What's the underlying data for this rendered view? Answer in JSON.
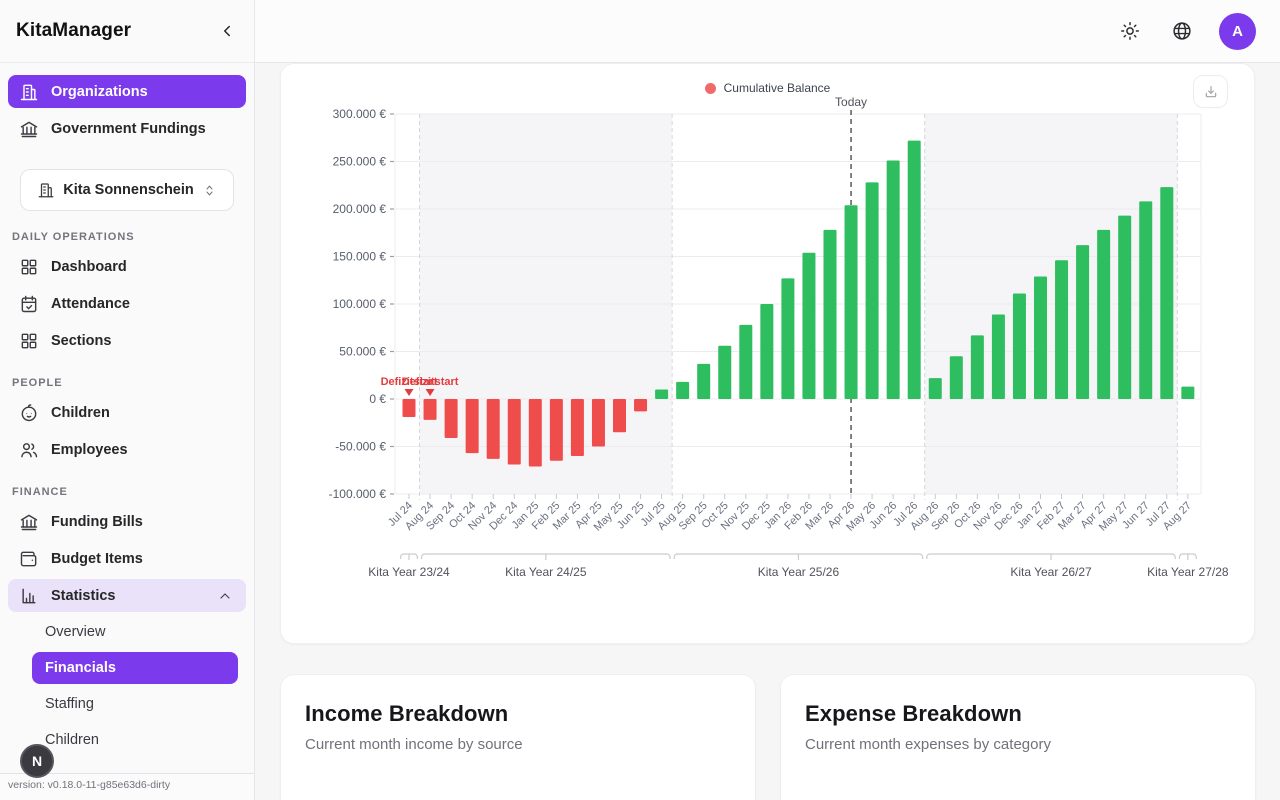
{
  "app": {
    "title": "KitaManager",
    "version_label": "version: v0.18.0-11-g85e63d6-dirty",
    "avatar_initial": "A",
    "debug_badge": "N"
  },
  "colors": {
    "accent_purple": "#7c3aed",
    "positive_green": "#2ebd5f",
    "negative_red": "#ef4c4c",
    "legend_red": "#f16a6a",
    "annotation_red": "#e23c3c"
  },
  "sidebar": {
    "primary": [
      {
        "label": "Organizations"
      },
      {
        "label": "Government Fundings"
      }
    ],
    "org_select_value": "Kita Sonnenschein",
    "daily_ops": {
      "heading": "DAILY OPERATIONS",
      "items": [
        {
          "label": "Dashboard"
        },
        {
          "label": "Attendance"
        },
        {
          "label": "Sections"
        }
      ]
    },
    "people": {
      "heading": "PEOPLE",
      "items": [
        {
          "label": "Children"
        },
        {
          "label": "Employees"
        }
      ]
    },
    "finance": {
      "heading": "FINANCE",
      "items": [
        {
          "label": "Funding Bills"
        },
        {
          "label": "Budget Items"
        },
        {
          "label": "Statistics"
        }
      ]
    },
    "statistics_sub": [
      {
        "label": "Overview"
      },
      {
        "label": "Financials"
      },
      {
        "label": "Staffing"
      },
      {
        "label": "Children"
      }
    ]
  },
  "cards": {
    "income": {
      "title": "Income Breakdown",
      "subtitle": "Current month income by source"
    },
    "expense": {
      "title": "Expense Breakdown",
      "subtitle": "Current month expenses by category"
    }
  },
  "chart_data": {
    "type": "bar",
    "series_name": "Cumulative Balance",
    "legend": [
      {
        "label": "Cumulative Balance",
        "color": "#f16a6a"
      }
    ],
    "x": [
      "Jul 24",
      "Aug 24",
      "Sep 24",
      "Oct 24",
      "Nov 24",
      "Dec 24",
      "Jan 25",
      "Feb 25",
      "Mar 25",
      "Apr 25",
      "May 25",
      "Jun 25",
      "Jul 25",
      "Aug 25",
      "Sep 25",
      "Oct 25",
      "Nov 25",
      "Dec 25",
      "Jan 26",
      "Feb 26",
      "Mar 26",
      "Apr 26",
      "May 26",
      "Jun 26",
      "Jul 26",
      "Aug 26",
      "Sep 26",
      "Oct 26",
      "Nov 26",
      "Dec 26",
      "Jan 27",
      "Feb 27",
      "Mar 27",
      "Apr 27",
      "May 27",
      "Jun 27",
      "Jul 27",
      "Aug 27"
    ],
    "values": [
      -19000,
      -22000,
      -41000,
      -57000,
      -63000,
      -69000,
      -71000,
      -65000,
      -60000,
      -50000,
      -35000,
      -13000,
      10000,
      18000,
      37000,
      56000,
      78000,
      100000,
      127000,
      154000,
      178000,
      204000,
      228000,
      251000,
      272000,
      22000,
      45000,
      67000,
      89000,
      111000,
      129000,
      146000,
      162000,
      178000,
      193000,
      208000,
      223000,
      13000
    ],
    "ylim": [
      -100000,
      300000
    ],
    "ytick_step": 50000,
    "ytick_suffix": " €",
    "grid": true,
    "legend_position": "top-center",
    "bar_colors": {
      "positive": "#2ebd5f",
      "negative": "#ef4c4c"
    },
    "today": {
      "label": "Today",
      "x_index": 21
    },
    "annotations": [
      {
        "text": "Defizitstart",
        "x_index": 0
      },
      {
        "text": "Defizitstart",
        "x_index": 1
      }
    ],
    "kita_years": [
      {
        "label": "Kita Year 23/24",
        "from": 0,
        "to": 0,
        "shaded": false
      },
      {
        "label": "Kita Year 24/25",
        "from": 1,
        "to": 12,
        "shaded": true
      },
      {
        "label": "Kita Year 25/26",
        "from": 13,
        "to": 24,
        "shaded": false
      },
      {
        "label": "Kita Year 26/27",
        "from": 25,
        "to": 36,
        "shaded": true
      },
      {
        "label": "Kita Year 27/28",
        "from": 37,
        "to": 37,
        "shaded": false
      }
    ]
  }
}
